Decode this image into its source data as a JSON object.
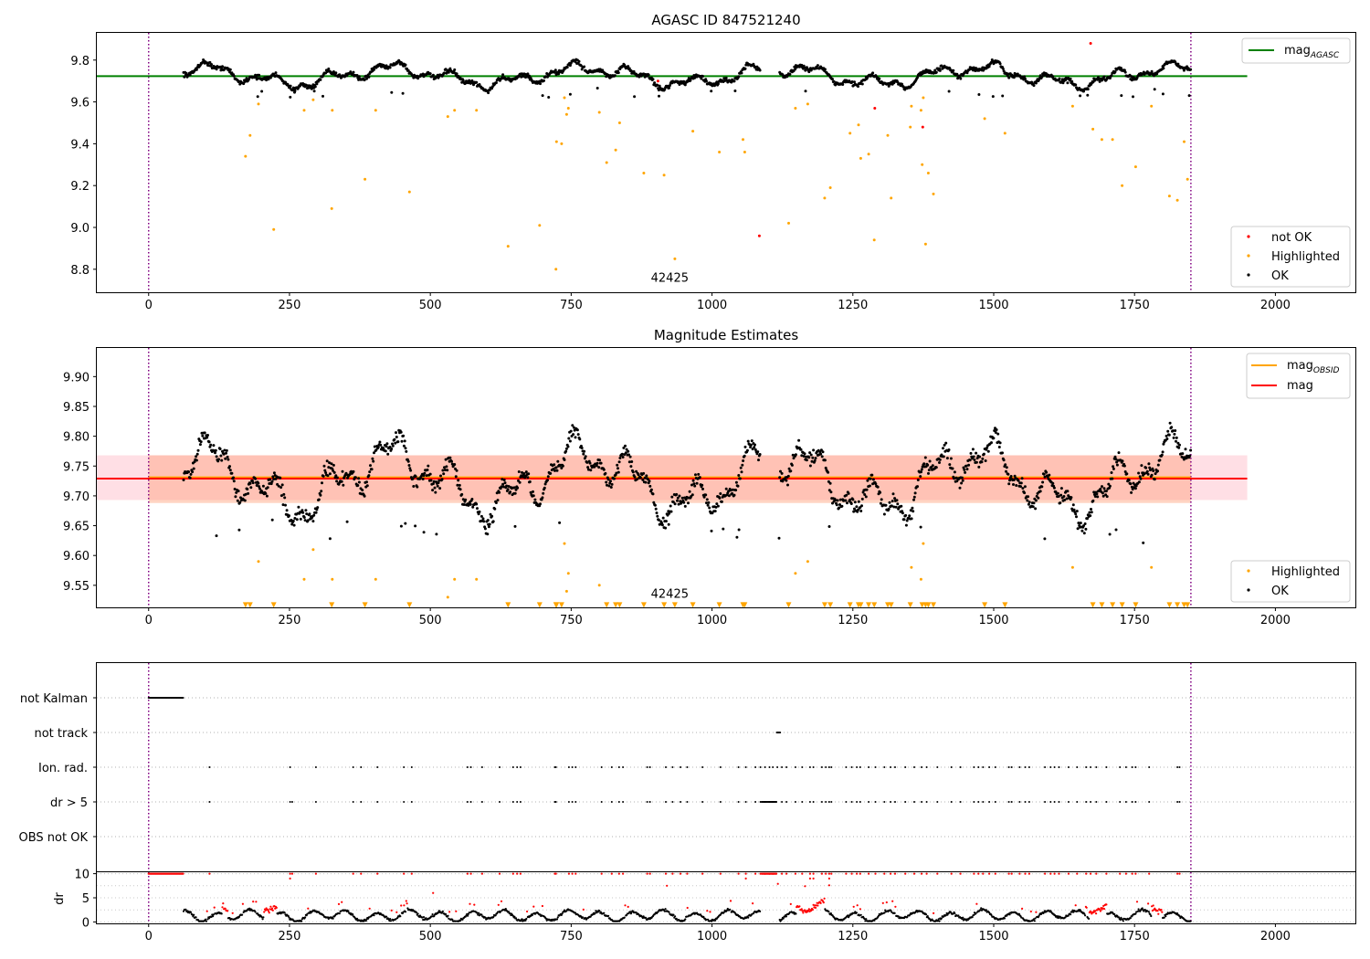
{
  "colors": {
    "ok": "#000000",
    "not_ok": "#ff0000",
    "highlighted": "#ffa500",
    "agasc_line": "#008000",
    "obsid_line": "#ffa500",
    "mag_line": "#ff0000",
    "obs_boundary": "#800080",
    "band_pink": "#ffc0cb",
    "band_orange": "#ffa07a"
  },
  "chart_data": [
    {
      "type": "scatter",
      "name": "agasc-panel",
      "title": "AGASC ID 847521240",
      "xlim": [
        -92,
        2142
      ],
      "ylim": [
        8.69,
        9.93
      ],
      "xticks": [
        0,
        250,
        500,
        750,
        1000,
        1250,
        1500,
        1750,
        2000
      ],
      "yticks": [
        8.8,
        9.0,
        9.2,
        9.4,
        9.6,
        9.8
      ],
      "ytick_labels": [
        "8.8",
        "9.0",
        "9.2",
        "9.4",
        "9.6",
        "9.8"
      ],
      "obs_boundaries": [
        0,
        1850
      ],
      "obsid_label": "42425",
      "obsid_label_x": 925,
      "obsid_label_y": 8.74,
      "hline": {
        "label": "mag",
        "sub": "AGASC",
        "value": 9.723,
        "x_range": [
          -92,
          1950
        ]
      },
      "ok_series": {
        "label": "OK",
        "x_range": [
          62,
          1850
        ],
        "mean": 9.725,
        "amp": 0.045
      },
      "highlighted": {
        "label": "Highlighted",
        "points": [
          [
            172,
            9.34
          ],
          [
            180,
            9.44
          ],
          [
            195,
            9.59
          ],
          [
            222,
            8.99
          ],
          [
            276,
            9.56
          ],
          [
            292,
            9.61
          ],
          [
            325,
            9.09
          ],
          [
            326,
            9.56
          ],
          [
            384,
            9.23
          ],
          [
            403,
            9.56
          ],
          [
            463,
            9.17
          ],
          [
            531,
            9.53
          ],
          [
            543,
            9.56
          ],
          [
            582,
            9.56
          ],
          [
            638,
            8.91
          ],
          [
            694,
            9.01
          ],
          [
            723,
            8.8
          ],
          [
            724,
            9.41
          ],
          [
            733,
            9.4
          ],
          [
            738,
            9.62
          ],
          [
            742,
            9.54
          ],
          [
            745,
            9.57
          ],
          [
            800,
            9.55
          ],
          [
            813,
            9.31
          ],
          [
            829,
            9.37
          ],
          [
            836,
            9.5
          ],
          [
            879,
            9.26
          ],
          [
            915,
            9.25
          ],
          [
            934,
            8.85
          ],
          [
            966,
            9.46
          ],
          [
            1013,
            9.36
          ],
          [
            1055,
            9.42
          ],
          [
            1058,
            9.36
          ],
          [
            1136,
            9.02
          ],
          [
            1148,
            9.57
          ],
          [
            1170,
            9.59
          ],
          [
            1200,
            9.14
          ],
          [
            1210,
            9.19
          ],
          [
            1245,
            9.45
          ],
          [
            1260,
            9.49
          ],
          [
            1264,
            9.33
          ],
          [
            1278,
            9.35
          ],
          [
            1288,
            8.94
          ],
          [
            1312,
            9.44
          ],
          [
            1318,
            9.14
          ],
          [
            1352,
            9.48
          ],
          [
            1354,
            9.58
          ],
          [
            1371,
            9.56
          ],
          [
            1373,
            9.3
          ],
          [
            1375,
            9.62
          ],
          [
            1379,
            8.92
          ],
          [
            1384,
            9.26
          ],
          [
            1393,
            9.16
          ],
          [
            1484,
            9.52
          ],
          [
            1520,
            9.45
          ],
          [
            1640,
            9.58
          ],
          [
            1676,
            9.47
          ],
          [
            1692,
            9.42
          ],
          [
            1711,
            9.42
          ],
          [
            1728,
            9.2
          ],
          [
            1752,
            9.29
          ],
          [
            1780,
            9.58
          ],
          [
            1812,
            9.15
          ],
          [
            1826,
            9.13
          ],
          [
            1838,
            9.41
          ],
          [
            1844,
            9.23
          ]
        ]
      },
      "not_ok": {
        "label": "not OK",
        "points": [
          [
            904,
            9.7
          ],
          [
            1084,
            8.96
          ],
          [
            1289,
            9.57
          ],
          [
            1374,
            9.48
          ],
          [
            1672,
            9.88
          ]
        ]
      },
      "legend_upper": [
        {
          "label": "mag",
          "sub": "AGASC"
        }
      ],
      "legend_lower": [
        "not OK",
        "Highlighted",
        "OK"
      ]
    },
    {
      "type": "scatter",
      "name": "magnitude-panel",
      "title": "Magnitude Estimates",
      "xlim": [
        -92,
        2142
      ],
      "ylim": [
        9.513,
        9.948
      ],
      "xticks": [
        0,
        250,
        500,
        750,
        1000,
        1250,
        1500,
        1750,
        2000
      ],
      "yticks": [
        9.55,
        9.6,
        9.65,
        9.7,
        9.75,
        9.8,
        9.85,
        9.9
      ],
      "ytick_labels": [
        "9.55",
        "9.60",
        "9.65",
        "9.70",
        "9.75",
        "9.80",
        "9.85",
        "9.90"
      ],
      "obs_boundaries": [
        0,
        1850
      ],
      "obsid_label": "42425",
      "obsid_label_x": 925,
      "obsid_label_y": 9.529,
      "mag_line": {
        "label": "mag",
        "value": 9.729,
        "band": [
          9.693,
          9.768
        ],
        "x_range": [
          -92,
          1950
        ]
      },
      "obsid_line": {
        "label": "mag",
        "sub": "OBSID",
        "value": 9.731,
        "band": [
          9.688,
          9.768
        ],
        "x_range": [
          0,
          1850
        ]
      },
      "offscale_y": 9.517,
      "legend_upper": [
        {
          "label": "mag",
          "sub": "OBSID"
        },
        {
          "label": "mag",
          "sub": ""
        }
      ],
      "legend_lower": [
        "Highlighted",
        "OK"
      ]
    },
    {
      "type": "flags",
      "name": "flags-panel",
      "categories": [
        "not Kalman",
        "not track",
        "Ion. rad.",
        "dr > 5",
        "OBS not OK"
      ],
      "xlim": [
        -92,
        2142
      ],
      "obs_boundaries": [
        0,
        1850
      ],
      "not_kalman": [
        [
          0,
          62
        ]
      ],
      "not_track": [
        [
          1115,
          1122
        ]
      ],
      "ion_rad": [
        108,
        251,
        297,
        363,
        377,
        406,
        453,
        467,
        566,
        572,
        592,
        623,
        647,
        654,
        660,
        721,
        723,
        746,
        752,
        758,
        804,
        822,
        835,
        842,
        885,
        890,
        918,
        930,
        944,
        956,
        983,
        1015,
        1047,
        1060,
        1077,
        1086,
        1094,
        1102,
        1108,
        1116,
        1124,
        1132,
        1148,
        1160,
        1174,
        1180,
        1195,
        1202,
        1208,
        1212,
        1238,
        1248,
        1257,
        1263,
        1278,
        1290,
        1306,
        1317,
        1325,
        1343,
        1359,
        1372,
        1381,
        1400,
        1425,
        1441,
        1465,
        1473,
        1481,
        1492,
        1503,
        1527,
        1532,
        1546,
        1556,
        1563,
        1591,
        1601,
        1608,
        1616,
        1633,
        1648,
        1664,
        1672,
        1682,
        1700,
        1724,
        1735,
        1746,
        1752,
        1776,
        1826,
        1830
      ],
      "dr_gt_5": [
        108,
        251,
        255,
        297,
        363,
        377,
        406,
        453,
        467,
        566,
        572,
        592,
        623,
        647,
        654,
        660,
        721,
        723,
        746,
        752,
        758,
        804,
        822,
        835,
        842,
        885,
        890,
        918,
        930,
        944,
        956,
        983,
        1015,
        1047,
        1060,
        1077,
        1086,
        1094,
        1102,
        1108,
        1124,
        1132,
        1148,
        1160,
        1174,
        1180,
        1195,
        1202,
        1208,
        1212,
        1238,
        1248,
        1257,
        1263,
        1278,
        1290,
        1306,
        1317,
        1325,
        1343,
        1359,
        1372,
        1381,
        1400,
        1425,
        1441,
        1465,
        1473,
        1481,
        1492,
        1503,
        1527,
        1532,
        1546,
        1556,
        1563,
        1591,
        1601,
        1608,
        1616,
        1633,
        1648,
        1664,
        1672,
        1682,
        1700,
        1724,
        1735,
        1746,
        1752,
        1776,
        1826,
        1830
      ],
      "dr_gt_5_range": [
        1088,
        1115
      ]
    },
    {
      "type": "scatter",
      "name": "dr-panel",
      "ylabel": "dr",
      "xlim": [
        -92,
        2142
      ],
      "ylim": [
        -0.3,
        10.3
      ],
      "xticks": [
        0,
        250,
        500,
        750,
        1000,
        1250,
        1500,
        1750,
        2000
      ],
      "yticks": [
        0,
        5,
        10
      ],
      "ytick_labels": [
        "0",
        "5",
        "10"
      ],
      "obs_boundaries": [
        0,
        1850
      ],
      "clip_value": 10,
      "dr_x_range": [
        62,
        1850
      ],
      "red_clusters": [
        [
          130,
          140
        ],
        [
          205,
          228
        ],
        [
          1150,
          1200
        ],
        [
          1670,
          1700
        ],
        [
          1780,
          1800
        ]
      ],
      "red_sparse": [
        [
          505,
          6.0
        ],
        [
          1117,
          7.9
        ],
        [
          1165,
          7.4
        ],
        [
          1208,
          7.6
        ],
        [
          920,
          7.5
        ]
      ]
    }
  ]
}
